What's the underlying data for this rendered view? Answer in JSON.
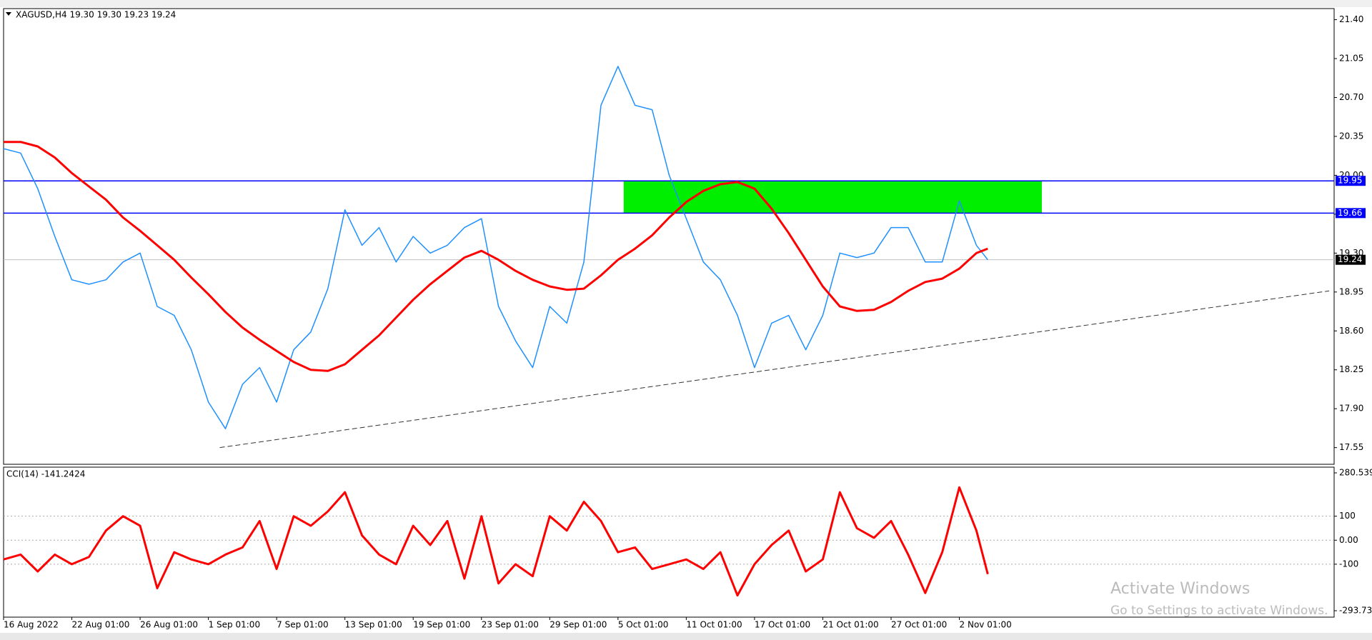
{
  "chart_data": [
    {
      "type": "line",
      "title": "XAGUSD,H4  19.30 19.30 19.23 19.24",
      "x": [
        0,
        6,
        12,
        18,
        24,
        30,
        36,
        42,
        48,
        54,
        60,
        66,
        72,
        78,
        84,
        90,
        96,
        102,
        108,
        114,
        120,
        126,
        132,
        138,
        144,
        150,
        156,
        162,
        168,
        174,
        180,
        186,
        192,
        198,
        204,
        210,
        216,
        222,
        228,
        234,
        240,
        246,
        252,
        258,
        264,
        270,
        276,
        282,
        288,
        294,
        300,
        306,
        312,
        318,
        324,
        330,
        336,
        342,
        346
      ],
      "series": [
        {
          "color": "#1e90ff",
          "values": [
            20.24,
            20.2,
            19.88,
            19.45,
            19.06,
            19.02,
            19.06,
            19.22,
            19.3,
            18.82,
            18.74,
            18.43,
            17.96,
            17.72,
            18.12,
            18.27,
            17.96,
            18.43,
            18.59,
            18.98,
            19.69,
            19.37,
            19.53,
            19.22,
            19.45,
            19.3,
            19.37,
            19.53,
            19.61,
            18.82,
            18.51,
            18.27,
            18.82,
            18.67,
            19.22,
            20.63,
            20.98,
            20.63,
            20.59,
            20.0,
            19.61,
            19.22,
            19.06,
            18.74,
            18.27,
            18.67,
            18.74,
            18.43,
            18.74,
            19.3,
            19.26,
            19.3,
            19.53,
            19.53,
            19.22,
            19.22,
            19.77,
            19.37,
            19.24
          ]
        },
        {
          "color": "#ff0000",
          "values": [
            20.3,
            20.3,
            20.26,
            20.16,
            20.02,
            19.9,
            19.78,
            19.62,
            19.5,
            19.37,
            19.24,
            19.08,
            18.93,
            18.77,
            18.63,
            18.52,
            18.42,
            18.32,
            18.25,
            18.24,
            18.3,
            18.43,
            18.56,
            18.72,
            18.88,
            19.02,
            19.14,
            19.26,
            19.32,
            19.24,
            19.14,
            19.06,
            19.0,
            18.97,
            18.98,
            19.1,
            19.24,
            19.34,
            19.46,
            19.62,
            19.76,
            19.86,
            19.92,
            19.94,
            19.88,
            19.7,
            19.48,
            19.24,
            19.0,
            18.82,
            18.78,
            18.79,
            18.86,
            18.96,
            19.04,
            19.07,
            19.16,
            19.3,
            19.34
          ]
        }
      ],
      "xlim": [
        0,
        467
      ],
      "ylim": [
        17.4,
        21.5
      ],
      "yticks": [
        {
          "value": 21.4,
          "label": "21.40"
        },
        21.05,
        {
          "value": 20.7,
          "label": "20.70"
        },
        20.35,
        {
          "value": 20.0,
          "label": "20.00"
        },
        19.65,
        {
          "value": 19.3,
          "label": "19.30"
        },
        18.95,
        {
          "value": 18.6,
          "label": "18.60"
        },
        18.25,
        {
          "value": 17.9,
          "label": "17.90"
        },
        17.55
      ],
      "grid": false,
      "hlines": [
        {
          "value": 19.95,
          "color": "#0000ff"
        },
        {
          "value": 19.66,
          "color": "#0000ff"
        },
        {
          "value": 19.24,
          "color": "#c0c0c0"
        }
      ],
      "zone": {
        "x": [
          218,
          365
        ],
        "y": [
          19.66,
          19.95
        ],
        "color": "#00ee00"
      },
      "trendline": {
        "x": [
          76,
          466
        ],
        "y": [
          17.55,
          18.96
        ],
        "color": "#333333"
      }
    },
    {
      "type": "line",
      "title": "CCI(14) -141.2424",
      "x": [
        0,
        6,
        12,
        18,
        24,
        30,
        36,
        42,
        48,
        54,
        60,
        66,
        72,
        78,
        84,
        90,
        96,
        102,
        108,
        114,
        120,
        126,
        132,
        138,
        144,
        150,
        156,
        162,
        168,
        174,
        180,
        186,
        192,
        198,
        204,
        210,
        216,
        222,
        228,
        234,
        240,
        246,
        252,
        258,
        264,
        270,
        276,
        282,
        288,
        294,
        300,
        306,
        312,
        318,
        324,
        330,
        336,
        342,
        346
      ],
      "series": [
        {
          "color": "#ff0000",
          "values": [
            -80,
            -60,
            -130,
            -60,
            -100,
            -70,
            40,
            100,
            60,
            -200,
            -50,
            -80,
            -100,
            -60,
            -30,
            80,
            -120,
            100,
            60,
            120,
            200,
            20,
            -60,
            -100,
            60,
            -20,
            80,
            -160,
            100,
            -180,
            -100,
            -150,
            100,
            40,
            160,
            80,
            -50,
            -30,
            -120,
            -100,
            -80,
            -120,
            -50,
            -230,
            -100,
            -20,
            40,
            -130,
            -80,
            200,
            50,
            10,
            80,
            -60,
            -220,
            -50,
            220,
            40,
            -141.2424
          ]
        }
      ],
      "xlim": [
        0,
        467
      ],
      "ylim": [
        -293.733,
        280.539
      ],
      "yticks": [
        280.539,
        100,
        {
          "value": 0,
          "label": "0.00"
        },
        -100,
        -293.733
      ],
      "grid": true,
      "xticks": [
        {
          "value": 0,
          "label": "16 Aug 2022"
        },
        {
          "value": 24,
          "label": "22 Aug 01:00"
        },
        {
          "value": 48,
          "label": "26 Aug 01:00"
        },
        {
          "value": 72,
          "label": "1 Sep 01:00"
        },
        {
          "value": 96,
          "label": "7 Sep 01:00"
        },
        {
          "value": 120,
          "label": "13 Sep 01:00"
        },
        {
          "value": 144,
          "label": "19 Sep 01:00"
        },
        {
          "value": 168,
          "label": "23 Sep 01:00"
        },
        {
          "value": 192,
          "label": "29 Sep 01:00"
        },
        {
          "value": 216,
          "label": "5 Oct 01:00"
        },
        {
          "value": 240,
          "label": "11 Oct 01:00"
        },
        {
          "value": 264,
          "label": "17 Oct 01:00"
        },
        {
          "value": 288,
          "label": "21 Oct 01:00"
        },
        {
          "value": 312,
          "label": "27 Oct 01:00"
        },
        {
          "value": 336,
          "label": "2 Nov 01:00"
        }
      ]
    }
  ],
  "watermark": [
    "Activate Windows",
    "Go to Settings to activate Windows."
  ]
}
